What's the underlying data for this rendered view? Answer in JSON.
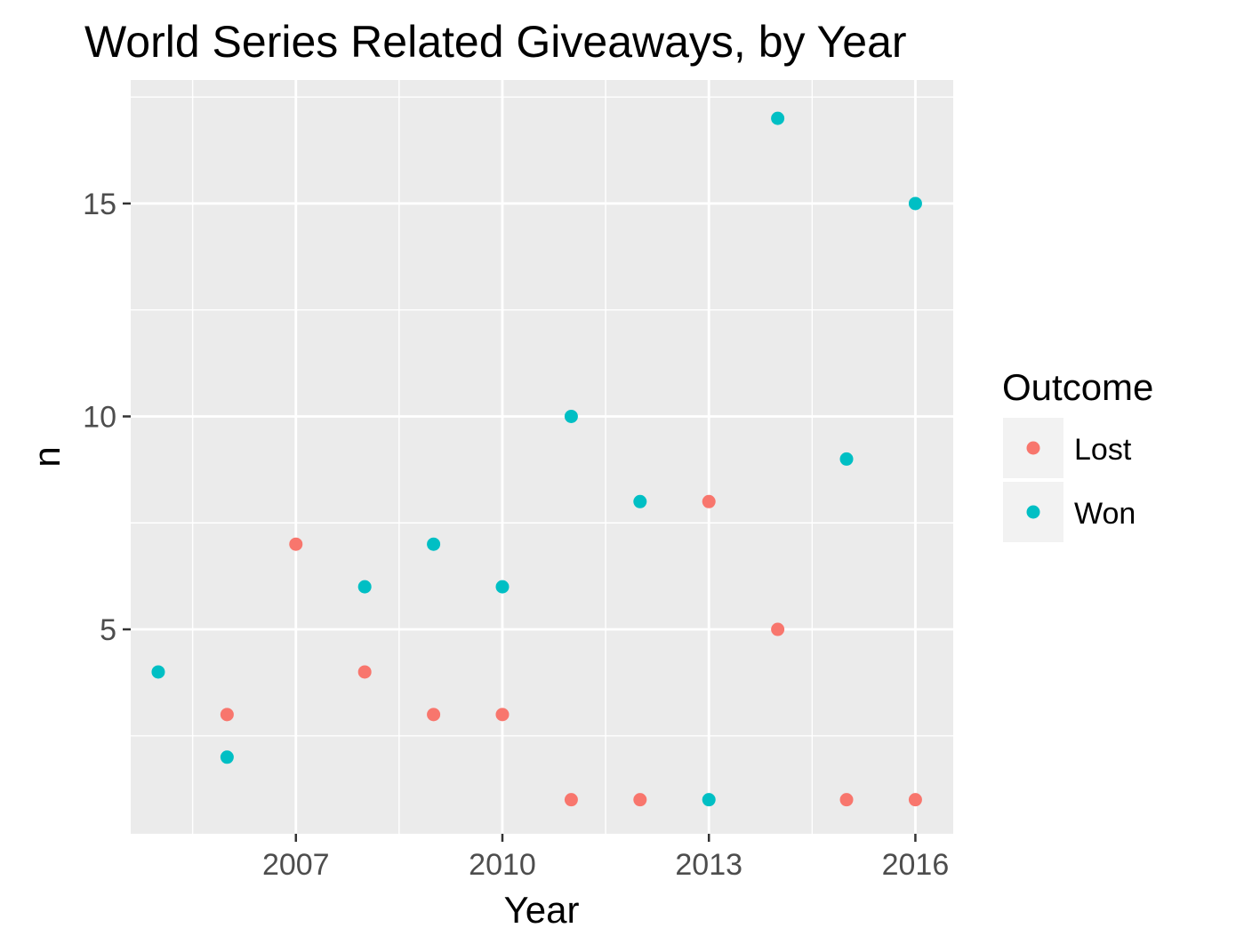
{
  "chart_data": {
    "type": "scatter",
    "title": "World Series Related Giveaways, by Year",
    "xlabel": "Year",
    "ylabel": "n",
    "xlim": [
      2004.6,
      2016.55
    ],
    "ylim": [
      0.2,
      17.9
    ],
    "x_ticks": [
      2007,
      2010,
      2013,
      2016
    ],
    "x_minor": [
      2005.5,
      2008.5,
      2011.5,
      2014.5
    ],
    "y_ticks": [
      5,
      10,
      15
    ],
    "y_minor": [
      2.5,
      7.5,
      12.5,
      17.5
    ],
    "legend": {
      "title": "Outcome",
      "position": "right"
    },
    "series": [
      {
        "name": "Lost",
        "color": "#F8766D",
        "x": [
          2006,
          2007,
          2008,
          2009,
          2010,
          2011,
          2012,
          2013,
          2014,
          2015,
          2016
        ],
        "y": [
          3,
          7,
          4,
          3,
          3,
          1,
          1,
          8,
          5,
          1,
          1
        ]
      },
      {
        "name": "Won",
        "color": "#00BFC4",
        "x": [
          2005,
          2006,
          2008,
          2009,
          2010,
          2011,
          2012,
          2013,
          2014,
          2015,
          2016
        ],
        "y": [
          4,
          2,
          6,
          7,
          6,
          10,
          8,
          1,
          17,
          9,
          15
        ]
      }
    ]
  }
}
